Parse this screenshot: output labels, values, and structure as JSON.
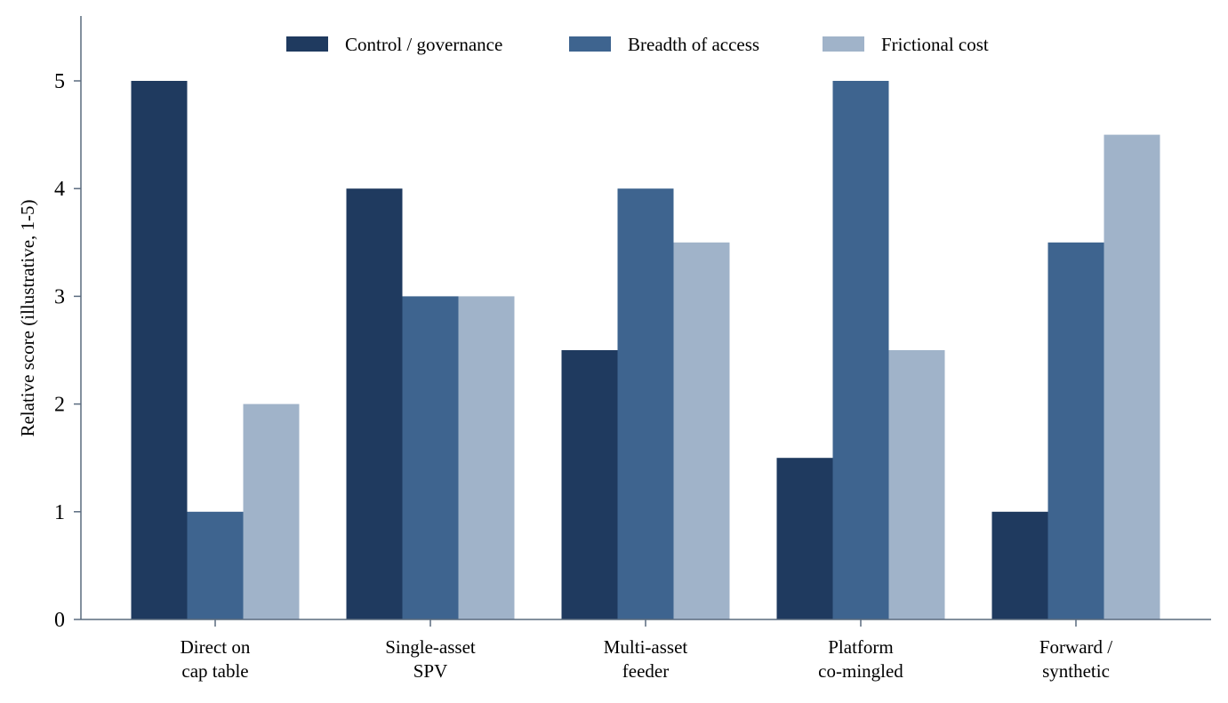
{
  "chart_data": {
    "type": "bar",
    "categories": [
      [
        "Direct on",
        "cap table"
      ],
      [
        "Single-asset",
        "SPV"
      ],
      [
        "Multi-asset",
        "feeder"
      ],
      [
        "Platform",
        "co-mingled"
      ],
      [
        "Forward /",
        "synthetic"
      ]
    ],
    "series": [
      {
        "name": "Control / governance",
        "values": [
          5,
          4,
          2.5,
          1.5,
          1
        ],
        "color": "#1f3a5f"
      },
      {
        "name": "Breadth of access",
        "values": [
          1,
          3,
          4,
          5,
          3.5
        ],
        "color": "#3e648f"
      },
      {
        "name": "Frictional cost",
        "values": [
          2,
          3,
          3.5,
          2.5,
          4.5
        ],
        "color": "#a0b3c9"
      }
    ],
    "title": "",
    "xlabel": "",
    "ylabel": "Relative score (illustrative, 1-5)",
    "ylim": [
      0,
      5.6
    ],
    "yticks": [
      0,
      1,
      2,
      3,
      4,
      5
    ],
    "grid": false,
    "legend": "top-center",
    "axis_color": "#5a6b7f"
  }
}
